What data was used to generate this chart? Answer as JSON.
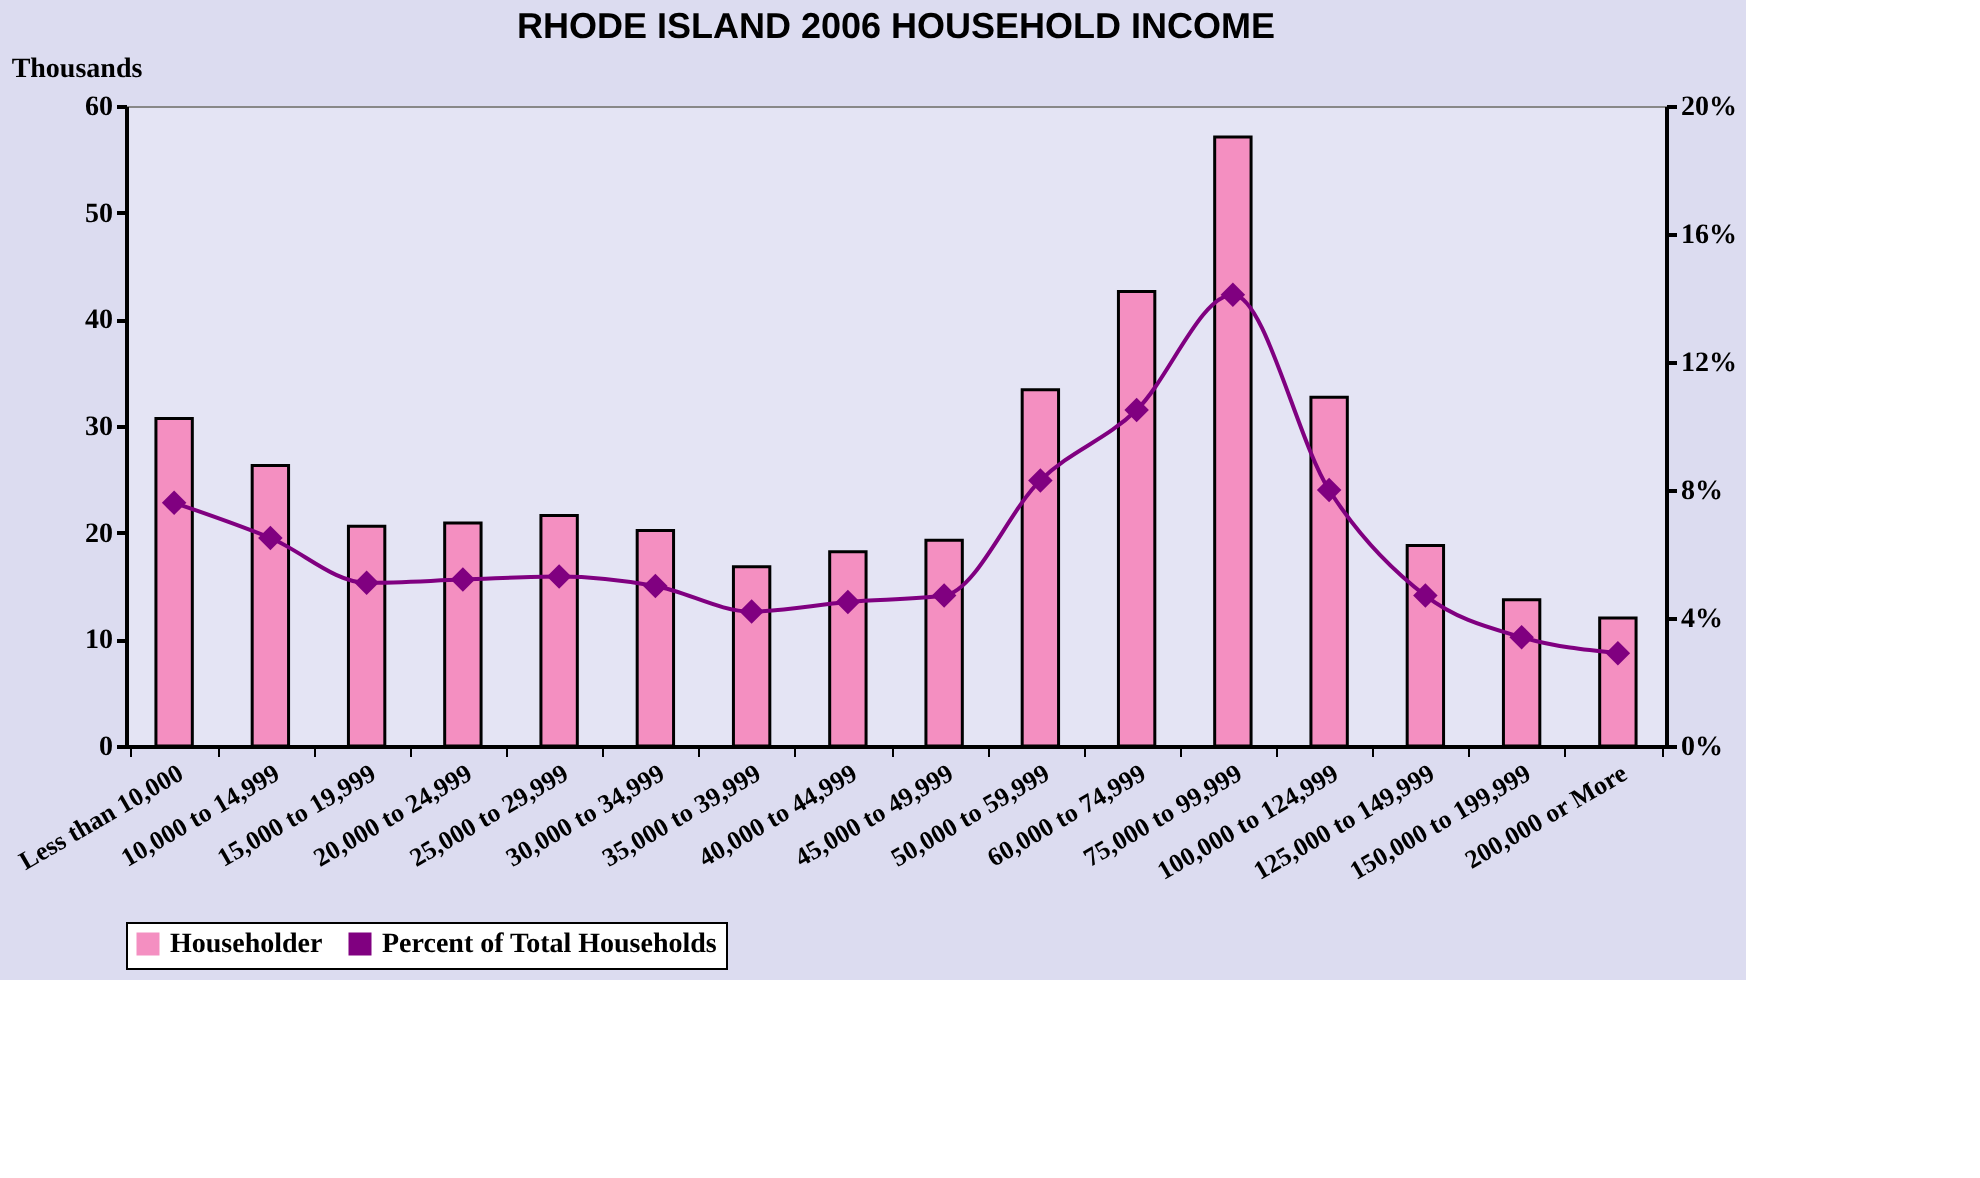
{
  "chart_data": {
    "type": "bar",
    "title": "RHODE ISLAND 2006 HOUSEHOLD INCOME",
    "ylabel": "Thousands",
    "categories": [
      "Less than 10,000",
      "10,000 to 14,999",
      "15,000 to 19,999",
      "20,000 to 24,999",
      "25,000 to 29,999",
      "30,000 to 34,999",
      "35,000 to 39,999",
      "40,000 to 44,999",
      "45,000 to 49,999",
      "50,000 to 59,999",
      "60,000 to 74,999",
      "75,000 to 99,999",
      "100,000 to 124,999",
      "125,000 to 149,999",
      "150,000 to 199,999",
      "200,000 or More"
    ],
    "series": [
      {
        "name": "Householder",
        "color": "#f48fc1",
        "values": [
          30.7,
          26.3,
          20.6,
          20.9,
          21.6,
          20.2,
          16.8,
          18.2,
          19.3,
          33.4,
          42.6,
          57.1,
          32.7,
          18.8,
          13.7,
          12.0
        ]
      },
      {
        "name": "Percent of Total Households",
        "type": "line",
        "axis": "y2",
        "color": "#800080",
        "marker": "diamond",
        "values": [
          7.6,
          6.5,
          5.1,
          5.2,
          5.3,
          5.0,
          4.2,
          4.5,
          4.7,
          8.3,
          10.5,
          14.1,
          8.0,
          4.7,
          3.4,
          2.9
        ]
      }
    ],
    "ylim": [
      0,
      60
    ],
    "yticks": [
      0,
      10,
      20,
      30,
      40,
      50,
      60
    ],
    "y2lim": [
      0,
      20
    ],
    "y2ticks": [
      {
        "value": 0,
        "label": "0%"
      },
      {
        "value": 4,
        "label": "4%"
      },
      {
        "value": 8,
        "label": "8%"
      },
      {
        "value": 12,
        "label": "12%"
      },
      {
        "value": 16,
        "label": "16%"
      },
      {
        "value": 20,
        "label": "20%"
      }
    ],
    "grid": false,
    "legend": "bottom"
  }
}
